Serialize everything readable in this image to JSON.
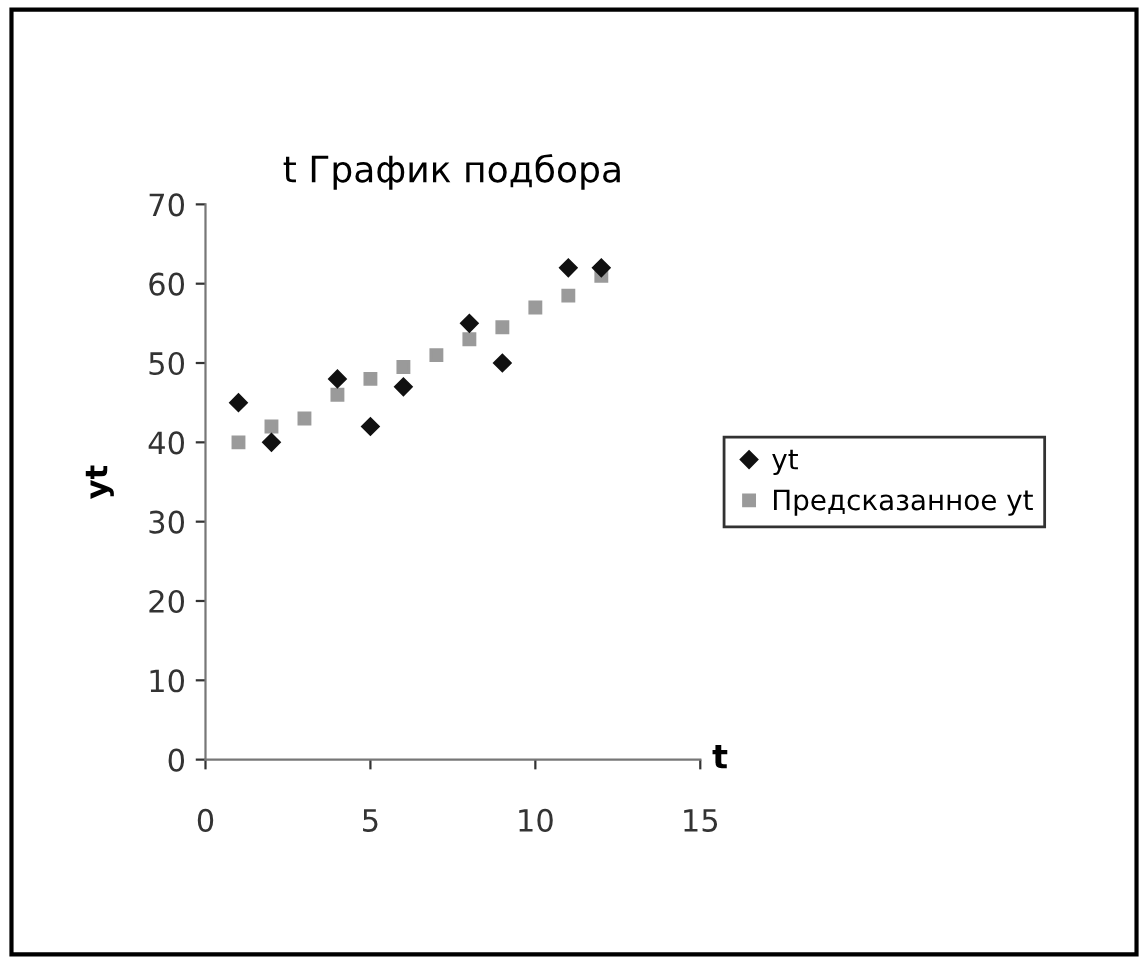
{
  "chart_data": {
    "type": "scatter",
    "title": "t График подбора",
    "xlabel": "t",
    "ylabel": "yt",
    "x": [
      1,
      2,
      3,
      4,
      5,
      6,
      7,
      8,
      9,
      10,
      11,
      12
    ],
    "series": [
      {
        "name": "yt",
        "color": "#111111",
        "marker": "diamond",
        "values": [
          45,
          40,
          null,
          48,
          42,
          47,
          null,
          55,
          50,
          null,
          62,
          62
        ]
      },
      {
        "name": "Предсказанное yt",
        "color": "#9a9a9a",
        "marker": "square",
        "values": [
          40,
          42,
          43,
          46,
          48,
          49.5,
          51,
          53,
          54.5,
          57,
          58.5,
          61
        ]
      }
    ],
    "xlim": [
      0,
      15
    ],
    "xticks": [
      0,
      5,
      10,
      15
    ],
    "ylim": [
      0,
      70
    ],
    "yticks": [
      0,
      10,
      20,
      30,
      40,
      50,
      60,
      70
    ],
    "grid": false,
    "legend": "right"
  }
}
